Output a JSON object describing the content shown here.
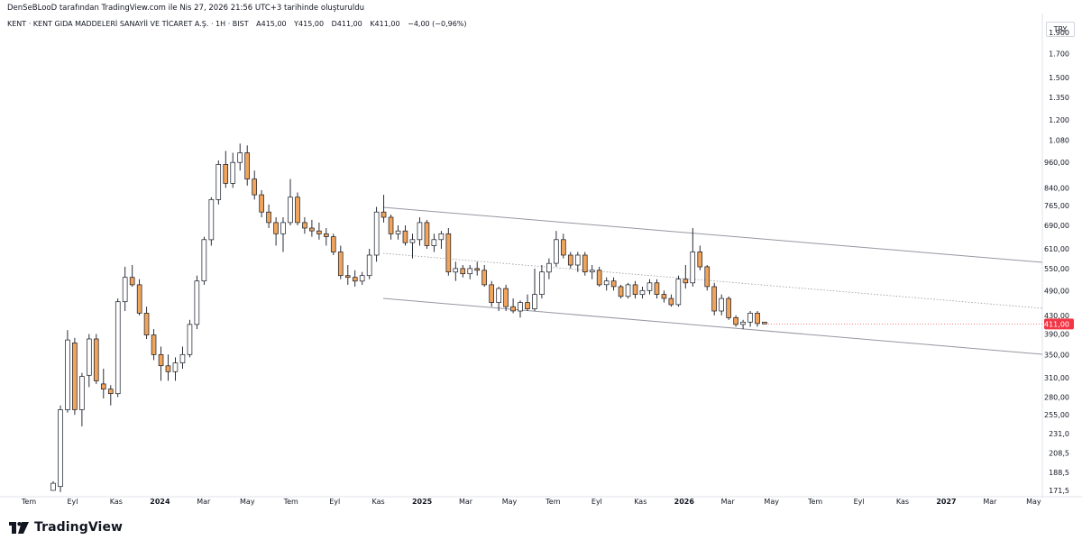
{
  "top_note": "DenSeBLooD tarafından TradingView.com ile Nis 27, 2026 21:56 UTC+3 tarihinde oluşturuldu",
  "header": {
    "symbol": "KENT · KENT GIDA MADDELERİ SANAYİİ VE TİCARET A.Ş. · 1H · BIST",
    "open": "A415,00",
    "high": "Y415,00",
    "low": "D411,00",
    "close": "K411,00",
    "change": "−4,00 (−0,96%)"
  },
  "currency": "TRY",
  "brand": "TradingView",
  "colors": {
    "up_body": "#ffffff",
    "down_body": "#f0a45c",
    "candle_border": "#131722",
    "channel": "#9598a1",
    "last_price_bg": "#f23645",
    "axis_text": "#131722"
  },
  "chart_data": {
    "type": "candlestick",
    "scale": "log",
    "x": [
      "Tem",
      "Eyl",
      "Kas",
      "2024",
      "Mar",
      "May",
      "Tem",
      "Eyl",
      "Kas",
      "2025",
      "Mar",
      "May",
      "Tem",
      "Eyl",
      "Kas",
      "2026",
      "Mar",
      "May",
      "Tem",
      "Eyl",
      "Kas",
      "2027",
      "Mar",
      "May"
    ],
    "y_ticks": [
      "1.900",
      "1.700",
      "1.500",
      "1.350",
      "1.200",
      "1.080",
      "960,00",
      "840,00",
      "765,00",
      "690,00",
      "610,00",
      "550,00",
      "490,00",
      "430,00",
      "390,00",
      "350,00",
      "310,00",
      "280,00",
      "255,00",
      "231,0",
      "208,5",
      "188,5",
      "171,5"
    ],
    "last_price": "411,00",
    "candles": [
      {
        "o": 171.5,
        "h": 180,
        "l": 171.5,
        "c": 178
      },
      {
        "o": 175,
        "h": 268,
        "l": 170,
        "c": 262
      },
      {
        "o": 262,
        "h": 398,
        "l": 258,
        "c": 378
      },
      {
        "o": 372,
        "h": 382,
        "l": 255,
        "c": 262
      },
      {
        "o": 262,
        "h": 318,
        "l": 240,
        "c": 312
      },
      {
        "o": 314,
        "h": 390,
        "l": 295,
        "c": 380
      },
      {
        "o": 380,
        "h": 390,
        "l": 300,
        "c": 305
      },
      {
        "o": 300,
        "h": 325,
        "l": 278,
        "c": 292
      },
      {
        "o": 292,
        "h": 298,
        "l": 268,
        "c": 285
      },
      {
        "o": 285,
        "h": 470,
        "l": 280,
        "c": 462
      },
      {
        "o": 462,
        "h": 555,
        "l": 440,
        "c": 525
      },
      {
        "o": 525,
        "h": 560,
        "l": 500,
        "c": 505
      },
      {
        "o": 505,
        "h": 520,
        "l": 430,
        "c": 435
      },
      {
        "o": 435,
        "h": 450,
        "l": 380,
        "c": 388
      },
      {
        "o": 388,
        "h": 400,
        "l": 340,
        "c": 350
      },
      {
        "o": 350,
        "h": 365,
        "l": 305,
        "c": 330
      },
      {
        "o": 330,
        "h": 350,
        "l": 305,
        "c": 320
      },
      {
        "o": 320,
        "h": 345,
        "l": 305,
        "c": 335
      },
      {
        "o": 335,
        "h": 365,
        "l": 325,
        "c": 350
      },
      {
        "o": 350,
        "h": 420,
        "l": 345,
        "c": 410
      },
      {
        "o": 410,
        "h": 530,
        "l": 400,
        "c": 515
      },
      {
        "o": 515,
        "h": 650,
        "l": 505,
        "c": 640
      },
      {
        "o": 640,
        "h": 800,
        "l": 620,
        "c": 790
      },
      {
        "o": 790,
        "h": 970,
        "l": 770,
        "c": 950
      },
      {
        "o": 950,
        "h": 1020,
        "l": 840,
        "c": 860
      },
      {
        "o": 860,
        "h": 1010,
        "l": 840,
        "c": 960
      },
      {
        "o": 960,
        "h": 1060,
        "l": 920,
        "c": 1010
      },
      {
        "o": 1010,
        "h": 1050,
        "l": 850,
        "c": 880
      },
      {
        "o": 880,
        "h": 920,
        "l": 790,
        "c": 810
      },
      {
        "o": 810,
        "h": 830,
        "l": 720,
        "c": 740
      },
      {
        "o": 740,
        "h": 770,
        "l": 680,
        "c": 700
      },
      {
        "o": 700,
        "h": 720,
        "l": 620,
        "c": 660
      },
      {
        "o": 660,
        "h": 720,
        "l": 600,
        "c": 700
      },
      {
        "o": 700,
        "h": 880,
        "l": 690,
        "c": 800
      },
      {
        "o": 800,
        "h": 820,
        "l": 690,
        "c": 700
      },
      {
        "o": 700,
        "h": 720,
        "l": 660,
        "c": 680
      },
      {
        "o": 680,
        "h": 710,
        "l": 650,
        "c": 670
      },
      {
        "o": 670,
        "h": 700,
        "l": 640,
        "c": 660
      },
      {
        "o": 660,
        "h": 680,
        "l": 620,
        "c": 650
      },
      {
        "o": 650,
        "h": 660,
        "l": 590,
        "c": 600
      },
      {
        "o": 600,
        "h": 620,
        "l": 520,
        "c": 530
      },
      {
        "o": 530,
        "h": 560,
        "l": 505,
        "c": 525
      },
      {
        "o": 525,
        "h": 545,
        "l": 500,
        "c": 515
      },
      {
        "o": 515,
        "h": 540,
        "l": 505,
        "c": 530
      },
      {
        "o": 530,
        "h": 610,
        "l": 520,
        "c": 590
      },
      {
        "o": 590,
        "h": 760,
        "l": 570,
        "c": 740
      },
      {
        "o": 740,
        "h": 810,
        "l": 700,
        "c": 720
      },
      {
        "o": 720,
        "h": 730,
        "l": 640,
        "c": 660
      },
      {
        "o": 660,
        "h": 690,
        "l": 640,
        "c": 670
      },
      {
        "o": 670,
        "h": 690,
        "l": 620,
        "c": 630
      },
      {
        "o": 630,
        "h": 660,
        "l": 580,
        "c": 640
      },
      {
        "o": 640,
        "h": 720,
        "l": 620,
        "c": 700
      },
      {
        "o": 700,
        "h": 710,
        "l": 610,
        "c": 620
      },
      {
        "o": 620,
        "h": 660,
        "l": 600,
        "c": 640
      },
      {
        "o": 640,
        "h": 670,
        "l": 610,
        "c": 660
      },
      {
        "o": 660,
        "h": 680,
        "l": 530,
        "c": 540
      },
      {
        "o": 540,
        "h": 570,
        "l": 515,
        "c": 550
      },
      {
        "o": 550,
        "h": 560,
        "l": 525,
        "c": 535
      },
      {
        "o": 535,
        "h": 560,
        "l": 520,
        "c": 550
      },
      {
        "o": 550,
        "h": 570,
        "l": 530,
        "c": 545
      },
      {
        "o": 545,
        "h": 560,
        "l": 500,
        "c": 505
      },
      {
        "o": 505,
        "h": 515,
        "l": 450,
        "c": 460
      },
      {
        "o": 460,
        "h": 500,
        "l": 440,
        "c": 495
      },
      {
        "o": 495,
        "h": 505,
        "l": 440,
        "c": 450
      },
      {
        "o": 450,
        "h": 470,
        "l": 435,
        "c": 440
      },
      {
        "o": 440,
        "h": 465,
        "l": 425,
        "c": 460
      },
      {
        "o": 460,
        "h": 480,
        "l": 440,
        "c": 445
      },
      {
        "o": 445,
        "h": 550,
        "l": 440,
        "c": 480
      },
      {
        "o": 480,
        "h": 560,
        "l": 470,
        "c": 540
      },
      {
        "o": 540,
        "h": 580,
        "l": 520,
        "c": 565
      },
      {
        "o": 565,
        "h": 670,
        "l": 555,
        "c": 640
      },
      {
        "o": 640,
        "h": 660,
        "l": 580,
        "c": 590
      },
      {
        "o": 590,
        "h": 600,
        "l": 550,
        "c": 560
      },
      {
        "o": 560,
        "h": 600,
        "l": 540,
        "c": 590
      },
      {
        "o": 590,
        "h": 600,
        "l": 530,
        "c": 540
      },
      {
        "o": 540,
        "h": 560,
        "l": 520,
        "c": 545
      },
      {
        "o": 545,
        "h": 555,
        "l": 500,
        "c": 505
      },
      {
        "o": 505,
        "h": 525,
        "l": 490,
        "c": 515
      },
      {
        "o": 515,
        "h": 525,
        "l": 490,
        "c": 500
      },
      {
        "o": 500,
        "h": 505,
        "l": 470,
        "c": 475
      },
      {
        "o": 475,
        "h": 510,
        "l": 470,
        "c": 505
      },
      {
        "o": 505,
        "h": 515,
        "l": 470,
        "c": 480
      },
      {
        "o": 480,
        "h": 500,
        "l": 470,
        "c": 490
      },
      {
        "o": 490,
        "h": 520,
        "l": 480,
        "c": 510
      },
      {
        "o": 510,
        "h": 520,
        "l": 470,
        "c": 480
      },
      {
        "o": 480,
        "h": 490,
        "l": 460,
        "c": 470
      },
      {
        "o": 470,
        "h": 480,
        "l": 450,
        "c": 455
      },
      {
        "o": 455,
        "h": 530,
        "l": 450,
        "c": 520
      },
      {
        "o": 520,
        "h": 560,
        "l": 495,
        "c": 510
      },
      {
        "o": 510,
        "h": 680,
        "l": 500,
        "c": 600
      },
      {
        "o": 600,
        "h": 620,
        "l": 545,
        "c": 555
      },
      {
        "o": 555,
        "h": 560,
        "l": 490,
        "c": 500
      },
      {
        "o": 500,
        "h": 510,
        "l": 430,
        "c": 440
      },
      {
        "o": 440,
        "h": 480,
        "l": 430,
        "c": 470
      },
      {
        "o": 470,
        "h": 475,
        "l": 420,
        "c": 425
      },
      {
        "o": 425,
        "h": 430,
        "l": 405,
        "c": 410
      },
      {
        "o": 410,
        "h": 420,
        "l": 400,
        "c": 415
      },
      {
        "o": 415,
        "h": 440,
        "l": 405,
        "c": 435
      },
      {
        "o": 435,
        "h": 440,
        "l": 405,
        "c": 412
      },
      {
        "o": 415,
        "h": 415,
        "l": 411,
        "c": 411
      }
    ]
  }
}
